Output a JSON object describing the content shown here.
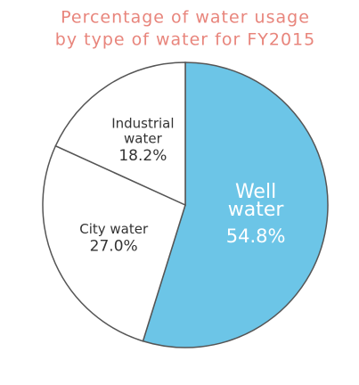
{
  "chart_data": {
    "type": "pie",
    "title": [
      "Percentage of water usage",
      "by type of water for FY2015"
    ],
    "categories": [
      [
        "Well",
        "water"
      ],
      [
        "City water"
      ],
      [
        "Industrial",
        "water"
      ]
    ],
    "values": [
      54.8,
      27.0,
      18.2
    ],
    "value_labels": [
      "54.8%",
      "27.0%",
      "18.2%"
    ],
    "colors": [
      "#6cc5e7",
      "#ffffff",
      "#ffffff"
    ],
    "label_colors": [
      "#ffffff",
      "#333333",
      "#333333"
    ]
  }
}
